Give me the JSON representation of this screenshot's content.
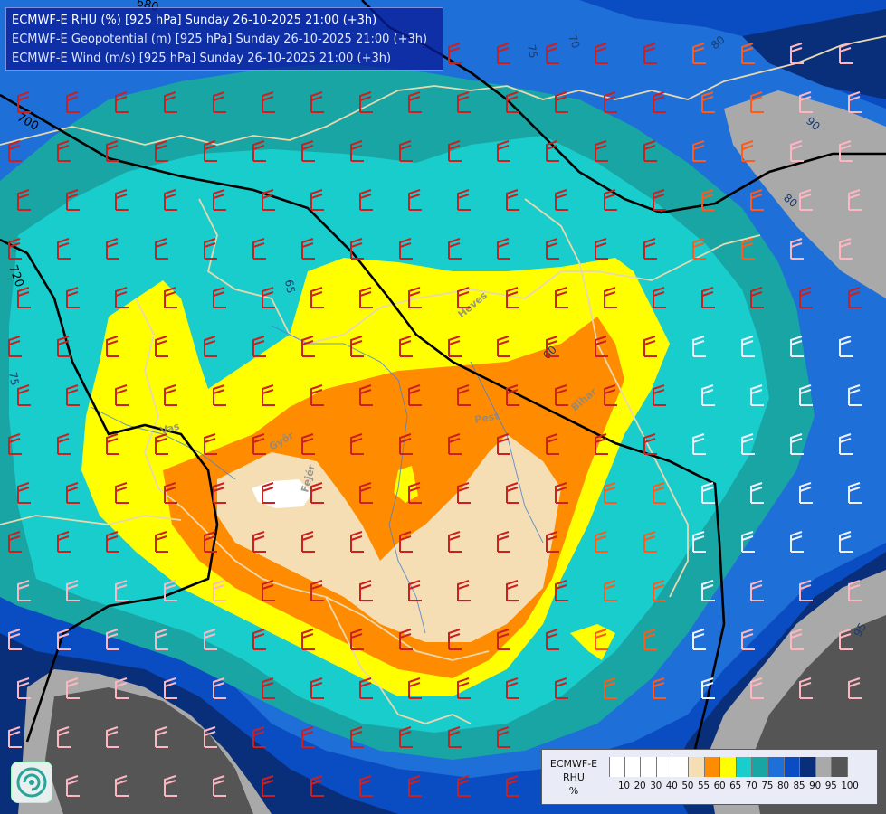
{
  "titles": {
    "rhu": "ECMWF-E RHU (%) [925 hPa] Sunday 26-10-2025 21:00 (+3h)",
    "geopotential": "ECMWF-E Geopotential (m) [925 hPa] Sunday 26-10-2025 21:00 (+3h)",
    "wind": "ECMWF-E Wind (m/s) [925 hPa] Sunday 26-10-2025 21:00 (+3h)"
  },
  "legend": {
    "model": "ECMWF-E",
    "field": "RHU",
    "unit": "%",
    "ticks": [
      "10",
      "20",
      "30",
      "40",
      "50",
      "55",
      "60",
      "65",
      "70",
      "75",
      "80",
      "85",
      "90",
      "95",
      "100"
    ],
    "colors": [
      "#ffffff",
      "#ffffff",
      "#ffffff",
      "#ffffff",
      "#ffffff",
      "#f5deb3",
      "#ff8c00",
      "#ffff00",
      "#19cdcd",
      "#1aa5a5",
      "#1e6fd8",
      "#0a4cc2",
      "#0a2f7a",
      "#a9a9a9",
      "#555555"
    ]
  },
  "contour_labels": {
    "geopotential": [
      "700",
      "720",
      "680"
    ],
    "rhu": [
      "75",
      "70",
      "80",
      "90",
      "80",
      "65",
      "75",
      "60",
      "95"
    ]
  },
  "place_labels": [
    "Heves",
    "Pest",
    "Bihar",
    "Vas",
    "Győr",
    "Fejér"
  ],
  "colors": {
    "rhu_95": "#a9a9a9",
    "rhu_100": "#555555",
    "rhu_90": "#0a2f7a",
    "rhu_85": "#0a4cc2",
    "rhu_80": "#1e6fd8",
    "rhu_75": "#1aa5a5",
    "rhu_70": "#19cdcd",
    "rhu_65": "#ffff00",
    "rhu_60": "#ff8c00",
    "rhu_55": "#f5deb3",
    "rhu_50": "#ffffff",
    "geopotential_line": "#000000",
    "border_line": "#e8d8b0"
  },
  "icons": [
    "wind-barb-icon",
    "weather-service-logo-icon"
  ]
}
